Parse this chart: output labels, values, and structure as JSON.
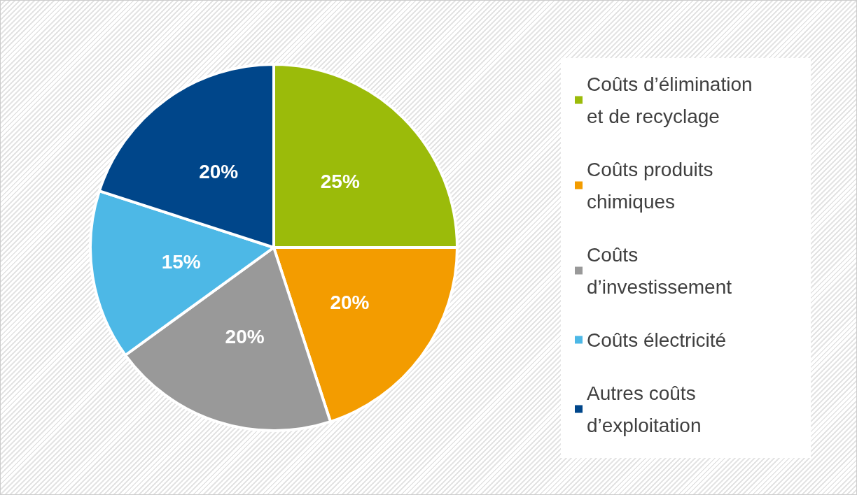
{
  "chart_data": {
    "type": "pie",
    "categories": [
      "Coûts d’élimination et de recyclage",
      "Coûts produits chimiques",
      "Coûts d’investissement",
      "Coûts électricité",
      "Autres coûts d’exploitation"
    ],
    "values": [
      25,
      20,
      20,
      15,
      20
    ],
    "value_labels": [
      "25%",
      "20%",
      "20%",
      "15%",
      "20%"
    ],
    "colors": [
      "#9bbb0a",
      "#f39c00",
      "#999999",
      "#4db8e6",
      "#00468a"
    ],
    "legend": "right"
  }
}
